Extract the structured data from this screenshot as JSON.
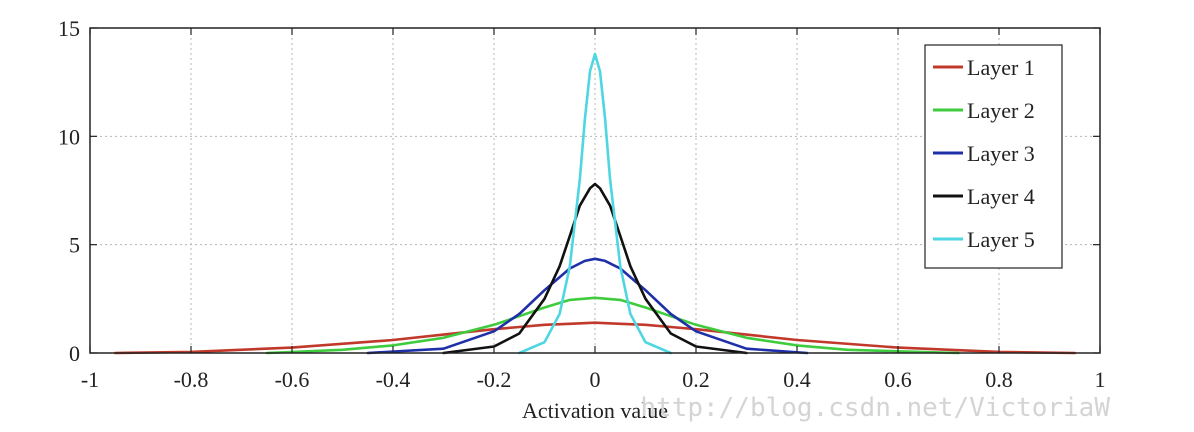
{
  "chart_data": {
    "type": "line",
    "title": "",
    "xlabel": "Activation value",
    "ylabel": "",
    "xlim": [
      -1,
      1
    ],
    "ylim": [
      0,
      15
    ],
    "grid": true,
    "legend_position": "top-right",
    "x_ticks": [
      "-1",
      "-0.8",
      "-0.6",
      "-0.4",
      "-0.2",
      "0",
      "0.2",
      "0.4",
      "0.6",
      "0.8",
      "1"
    ],
    "y_ticks": [
      "0",
      "5",
      "10",
      "15"
    ],
    "series": [
      {
        "name": "Layer 1",
        "color": "#c0392b",
        "x": [
          -0.95,
          -0.8,
          -0.6,
          -0.4,
          -0.3,
          -0.2,
          -0.15,
          -0.1,
          -0.05,
          0,
          0.05,
          0.1,
          0.15,
          0.2,
          0.3,
          0.4,
          0.6,
          0.8,
          0.95
        ],
        "y": [
          0.0,
          0.05,
          0.25,
          0.6,
          0.85,
          1.1,
          1.2,
          1.3,
          1.35,
          1.4,
          1.35,
          1.3,
          1.2,
          1.1,
          0.85,
          0.6,
          0.25,
          0.05,
          0.0
        ]
      },
      {
        "name": "Layer 2",
        "color": "#3ecc3e",
        "x": [
          -0.65,
          -0.5,
          -0.4,
          -0.3,
          -0.2,
          -0.15,
          -0.1,
          -0.05,
          0,
          0.05,
          0.1,
          0.15,
          0.2,
          0.3,
          0.4,
          0.5,
          0.72
        ],
        "y": [
          0.0,
          0.15,
          0.35,
          0.7,
          1.3,
          1.7,
          2.1,
          2.45,
          2.55,
          2.45,
          2.1,
          1.7,
          1.3,
          0.7,
          0.35,
          0.15,
          0.0
        ]
      },
      {
        "name": "Layer 3",
        "color": "#1f2fa8",
        "x": [
          -0.45,
          -0.3,
          -0.2,
          -0.15,
          -0.1,
          -0.05,
          -0.02,
          0,
          0.02,
          0.05,
          0.1,
          0.15,
          0.2,
          0.3,
          0.42
        ],
        "y": [
          0.0,
          0.2,
          1.0,
          1.8,
          2.9,
          3.9,
          4.25,
          4.35,
          4.25,
          3.9,
          2.9,
          1.8,
          1.0,
          0.2,
          0.0
        ]
      },
      {
        "name": "Layer 4",
        "color": "#111111",
        "x": [
          -0.3,
          -0.2,
          -0.15,
          -0.1,
          -0.07,
          -0.05,
          -0.03,
          -0.01,
          0,
          0.01,
          0.03,
          0.05,
          0.07,
          0.1,
          0.15,
          0.2,
          0.3
        ],
        "y": [
          0.0,
          0.3,
          0.9,
          2.5,
          4.0,
          5.4,
          6.8,
          7.6,
          7.8,
          7.6,
          6.8,
          5.4,
          4.0,
          2.5,
          0.9,
          0.3,
          0.0
        ]
      },
      {
        "name": "Layer 5",
        "color": "#4fd6e3",
        "x": [
          -0.15,
          -0.1,
          -0.07,
          -0.05,
          -0.03,
          -0.02,
          -0.01,
          0,
          0.01,
          0.02,
          0.03,
          0.05,
          0.07,
          0.1,
          0.15
        ],
        "y": [
          0.0,
          0.5,
          1.8,
          4.0,
          8.0,
          10.8,
          13.0,
          13.8,
          13.0,
          10.8,
          8.0,
          4.0,
          1.8,
          0.5,
          0.0
        ]
      }
    ]
  },
  "watermark": "http://blog.csdn.net/VictoriaW"
}
